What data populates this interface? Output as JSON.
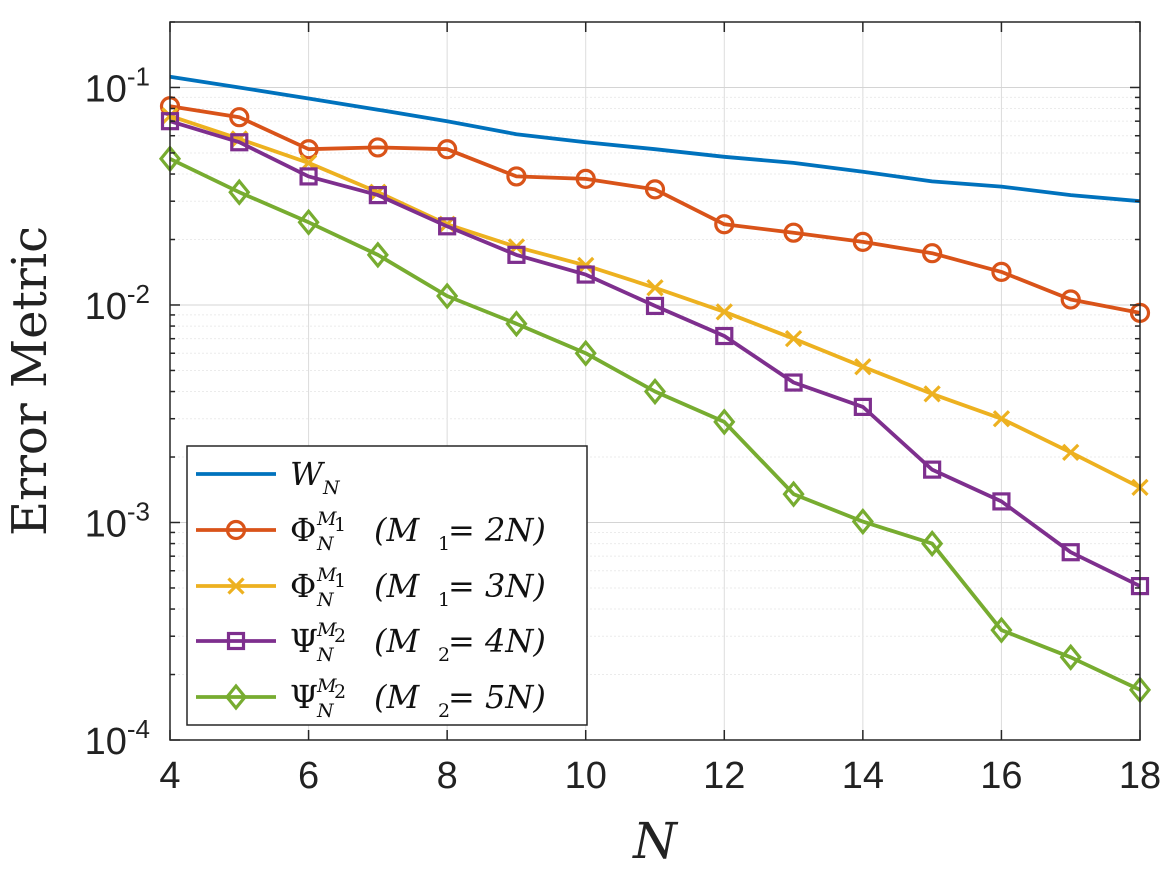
{
  "chart_data": {
    "type": "line",
    "yscale": "log",
    "xlabel": "N",
    "ylabel": "Error Metric",
    "xlim": [
      4,
      18
    ],
    "ylim": [
      0.0001,
      0.2
    ],
    "xticks": [
      4,
      6,
      8,
      10,
      12,
      14,
      16,
      18
    ],
    "yticks": [
      {
        "value": 0.1,
        "base": "10",
        "exp": "-1"
      },
      {
        "value": 0.01,
        "base": "10",
        "exp": "-2"
      },
      {
        "value": 0.001,
        "base": "10",
        "exp": "-3"
      },
      {
        "value": 0.0001,
        "base": "10",
        "exp": "-4"
      }
    ],
    "grid": true,
    "legend_position": "bottom-left",
    "x": [
      4,
      5,
      6,
      7,
      8,
      9,
      10,
      11,
      12,
      13,
      14,
      15,
      16,
      17,
      18
    ],
    "series": [
      {
        "name": "W_N",
        "legend": {
          "sym": "W",
          "sub": "N",
          "sup": "",
          "paren": ""
        },
        "color": "#0072BD",
        "marker": "none",
        "values": [
          0.112,
          0.1,
          0.089,
          0.079,
          0.07,
          0.061,
          0.056,
          0.052,
          0.048,
          0.045,
          0.041,
          0.037,
          0.035,
          0.032,
          0.03
        ]
      },
      {
        "name": "Phi_N^{M1} (M1 = 2N)",
        "legend": {
          "sym": "Φ",
          "sub": "N",
          "sup": "M",
          "supsub": "1",
          "paren": "(M",
          "parensub": "1",
          "paren2": " = 2N)"
        },
        "color": "#D95319",
        "marker": "circle",
        "values": [
          0.082,
          0.073,
          0.052,
          0.053,
          0.052,
          0.039,
          0.038,
          0.034,
          0.0235,
          0.0215,
          0.0195,
          0.0173,
          0.0142,
          0.0106,
          0.0092
        ]
      },
      {
        "name": "Phi_N^{M1} (M1 = 3N)",
        "legend": {
          "sym": "Φ",
          "sub": "N",
          "sup": "M",
          "supsub": "1",
          "paren": "(M",
          "parensub": "1",
          "paren2": " = 3N)"
        },
        "color": "#EDB120",
        "marker": "x",
        "values": [
          0.074,
          0.058,
          0.045,
          0.033,
          0.0235,
          0.0185,
          0.0152,
          0.012,
          0.0093,
          0.007,
          0.0052,
          0.0039,
          0.003,
          0.0021,
          0.00145
        ]
      },
      {
        "name": "Psi_N^{M2} (M2 = 4N)",
        "legend": {
          "sym": "Ψ",
          "sub": "N",
          "sup": "M",
          "supsub": "2",
          "paren": "(M",
          "parensub": "2",
          "paren2": " = 4N)"
        },
        "color": "#7E2F8E",
        "marker": "square",
        "values": [
          0.07,
          0.056,
          0.039,
          0.032,
          0.023,
          0.017,
          0.0138,
          0.0099,
          0.0072,
          0.0044,
          0.0034,
          0.00175,
          0.00125,
          0.00073,
          0.00051
        ]
      },
      {
        "name": "Psi_N^{M2} (M2 = 5N)",
        "legend": {
          "sym": "Ψ",
          "sub": "N",
          "sup": "M",
          "supsub": "2",
          "paren": "(M",
          "parensub": "2",
          "paren2": " = 5N)"
        },
        "color": "#77AC30",
        "marker": "diamond",
        "values": [
          0.047,
          0.033,
          0.024,
          0.017,
          0.011,
          0.0082,
          0.006,
          0.004,
          0.0029,
          0.00135,
          0.00101,
          0.0008,
          0.00032,
          0.00024,
          0.00017
        ]
      }
    ]
  }
}
